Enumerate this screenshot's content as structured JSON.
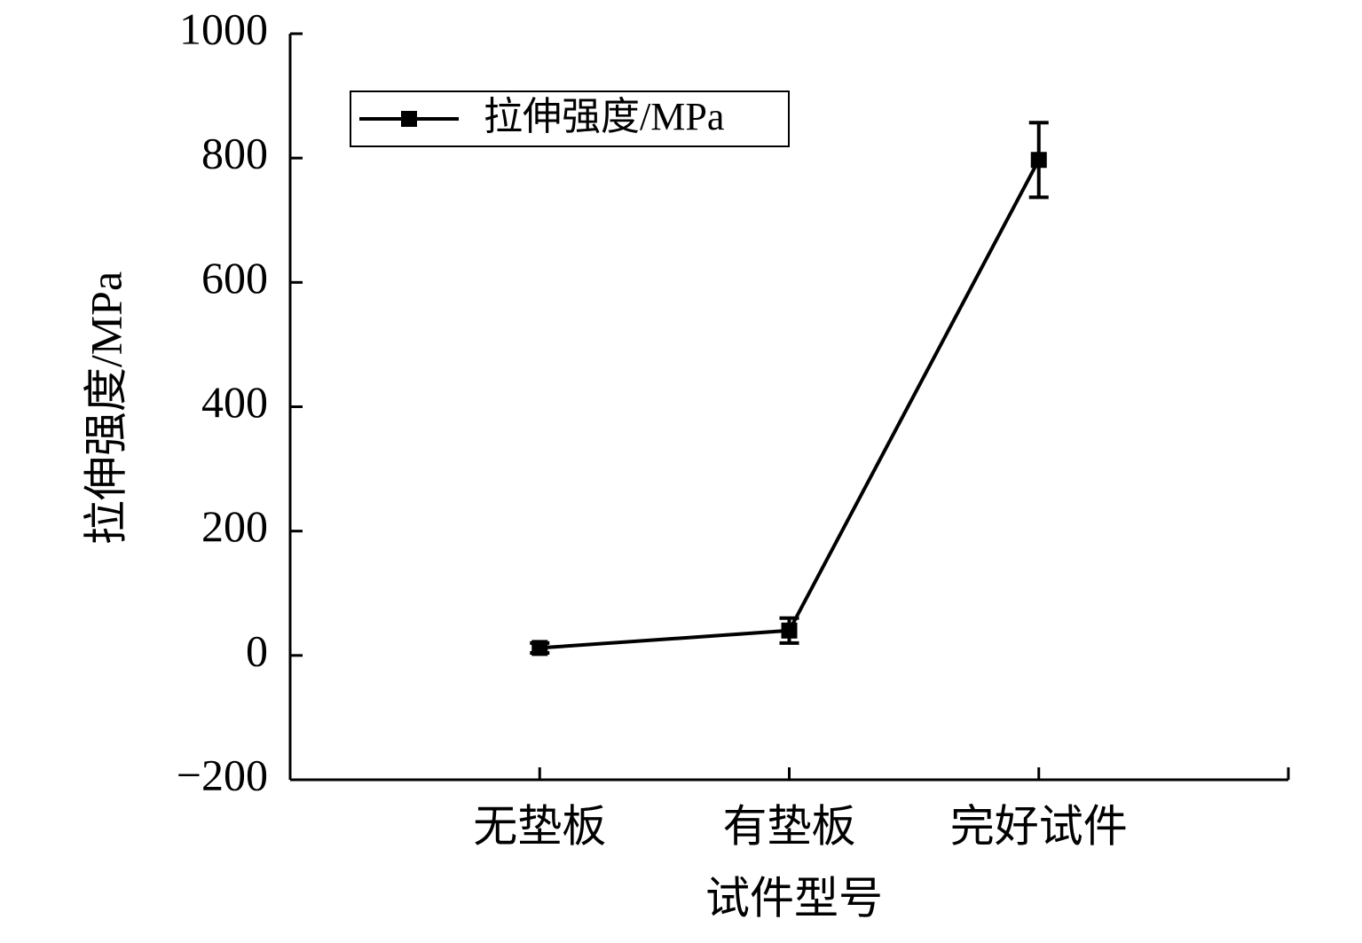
{
  "chart_data": {
    "type": "line",
    "categories": [
      "无垫板",
      "有垫板",
      "完好试件"
    ],
    "series": [
      {
        "name": "拉伸强度/MPa",
        "color": "#000000",
        "values": [
          12,
          40,
          797
        ],
        "errors": [
          8,
          20,
          60
        ]
      }
    ],
    "x_label": "试件型号",
    "y_label": "拉伸强度/MPa",
    "ylim": [
      -200,
      1000
    ],
    "yticks": [
      {
        "value": -200,
        "label": "−200"
      },
      0,
      200,
      400,
      600,
      800,
      1000
    ],
    "legend": "upper left"
  }
}
